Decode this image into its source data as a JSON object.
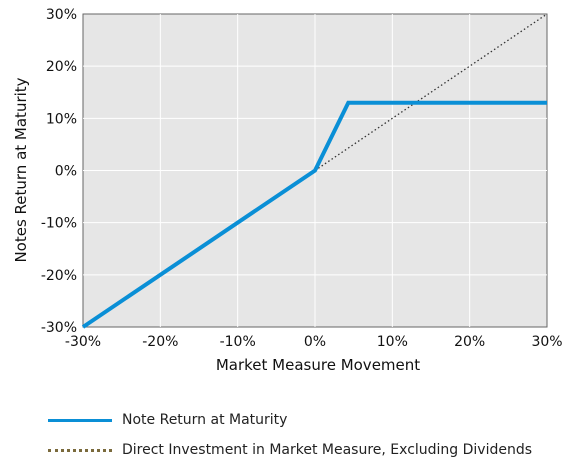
{
  "chart_data": {
    "type": "line",
    "xlabel": "Market Measure Movement",
    "ylabel": "Notes Return at Maturity",
    "xlim": [
      -30,
      30
    ],
    "ylim": [
      -30,
      30
    ],
    "x_ticks": [
      "-30%",
      "-20%",
      "-10%",
      "0%",
      "10%",
      "20%",
      "30%"
    ],
    "y_ticks": [
      "30%",
      "20%",
      "10%",
      "0%",
      "-10%",
      "-20%",
      "-30%"
    ],
    "grid": true,
    "legend_position": "bottom",
    "series": [
      {
        "name": "Note Return at Maturity",
        "style": "solid",
        "color": "#0a8fd6",
        "x": [
          -30,
          0,
          4.3,
          30
        ],
        "y": [
          -30,
          0,
          13,
          13
        ]
      },
      {
        "name": "Direct Investment in Market Measure, Excluding Dividends",
        "style": "dotted",
        "color": "#333333",
        "x": [
          0,
          30
        ],
        "y": [
          0,
          30
        ]
      }
    ]
  }
}
